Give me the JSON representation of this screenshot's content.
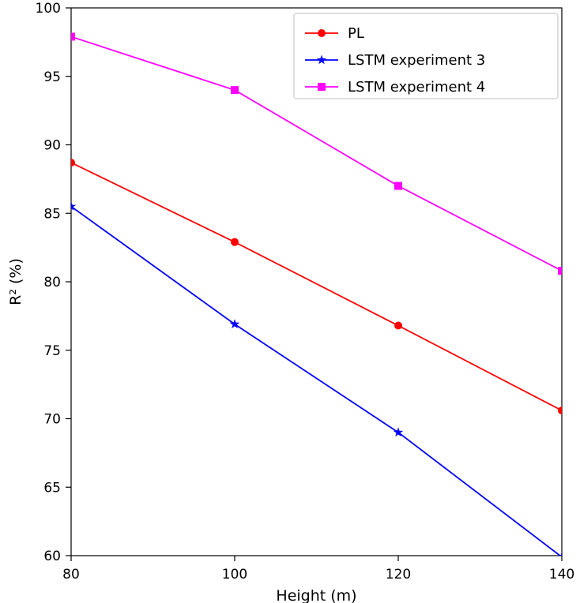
{
  "chart_data": {
    "type": "line",
    "title": "",
    "xlabel": "Height (m)",
    "ylabel": "R² (%)",
    "x": [
      80,
      100,
      120,
      140
    ],
    "series": [
      {
        "name": "PL",
        "color": "#ff0000",
        "marker": "circle",
        "values": [
          88.7,
          82.9,
          76.8,
          70.6
        ]
      },
      {
        "name": "LSTM experiment 3",
        "color": "#0000ff",
        "marker": "star",
        "values": [
          85.5,
          76.9,
          69.0,
          59.9
        ]
      },
      {
        "name": "LSTM experiment 4",
        "color": "#ff00ff",
        "marker": "square",
        "values": [
          97.9,
          94.0,
          87.0,
          80.8
        ]
      }
    ],
    "xlim": [
      80,
      140
    ],
    "ylim": [
      60,
      100
    ],
    "xticks": [
      "80",
      "100",
      "120",
      "140"
    ],
    "yticks": [
      "60",
      "65",
      "70",
      "75",
      "80",
      "85",
      "90",
      "95",
      "100"
    ],
    "grid": false,
    "legend_position": "upper right",
    "colors": {
      "axis": "#000000",
      "legend_border": "#cccccc",
      "background": "#ffffff"
    }
  }
}
